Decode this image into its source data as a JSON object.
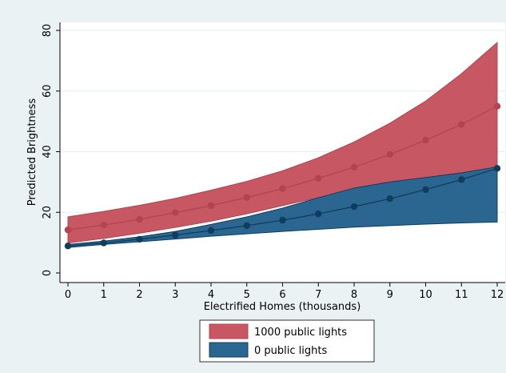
{
  "chart_data": {
    "type": "line",
    "title": "",
    "xlabel": "Electrified Homes (thousands)",
    "ylabel": "Predicted Brightness",
    "x": [
      0,
      1,
      2,
      3,
      4,
      5,
      6,
      7,
      8,
      9,
      10,
      11,
      12
    ],
    "xlim": [
      0,
      12
    ],
    "ylim": [
      0,
      80
    ],
    "yticks": [
      0,
      20,
      40,
      60,
      80
    ],
    "legend_position": "bottom",
    "series": [
      {
        "name": "1000 public lights",
        "color": "#b5434f",
        "fill": "#c65763",
        "values": [
          14.2,
          15.8,
          17.7,
          19.9,
          22.2,
          24.9,
          27.8,
          31.2,
          34.9,
          39.1,
          43.8,
          49.0,
          55.0
        ],
        "lower": [
          9.9,
          11.4,
          13.1,
          15.0,
          17.1,
          19.5,
          22.2,
          24.9,
          26.8,
          28.6,
          30.5,
          32.2,
          34.0
        ],
        "upper": [
          18.5,
          20.3,
          22.3,
          24.6,
          27.3,
          30.2,
          33.7,
          38.0,
          43.2,
          49.4,
          56.7,
          65.7,
          76.0
        ]
      },
      {
        "name": "0 public lights",
        "color": "#0e3d5e",
        "fill": "#2a6690",
        "values": [
          8.9,
          9.9,
          11.1,
          12.5,
          14.0,
          15.6,
          17.4,
          19.5,
          21.9,
          24.5,
          27.5,
          30.8,
          34.5
        ],
        "lower": [
          8.4,
          9.4,
          10.3,
          11.2,
          12.1,
          12.9,
          13.7,
          14.4,
          15.1,
          15.6,
          16.1,
          16.5,
          16.8
        ],
        "upper": [
          9.4,
          10.5,
          11.9,
          13.7,
          16.0,
          18.5,
          21.4,
          24.8,
          28.0,
          30.0,
          31.5,
          33.0,
          35.0
        ]
      }
    ]
  }
}
